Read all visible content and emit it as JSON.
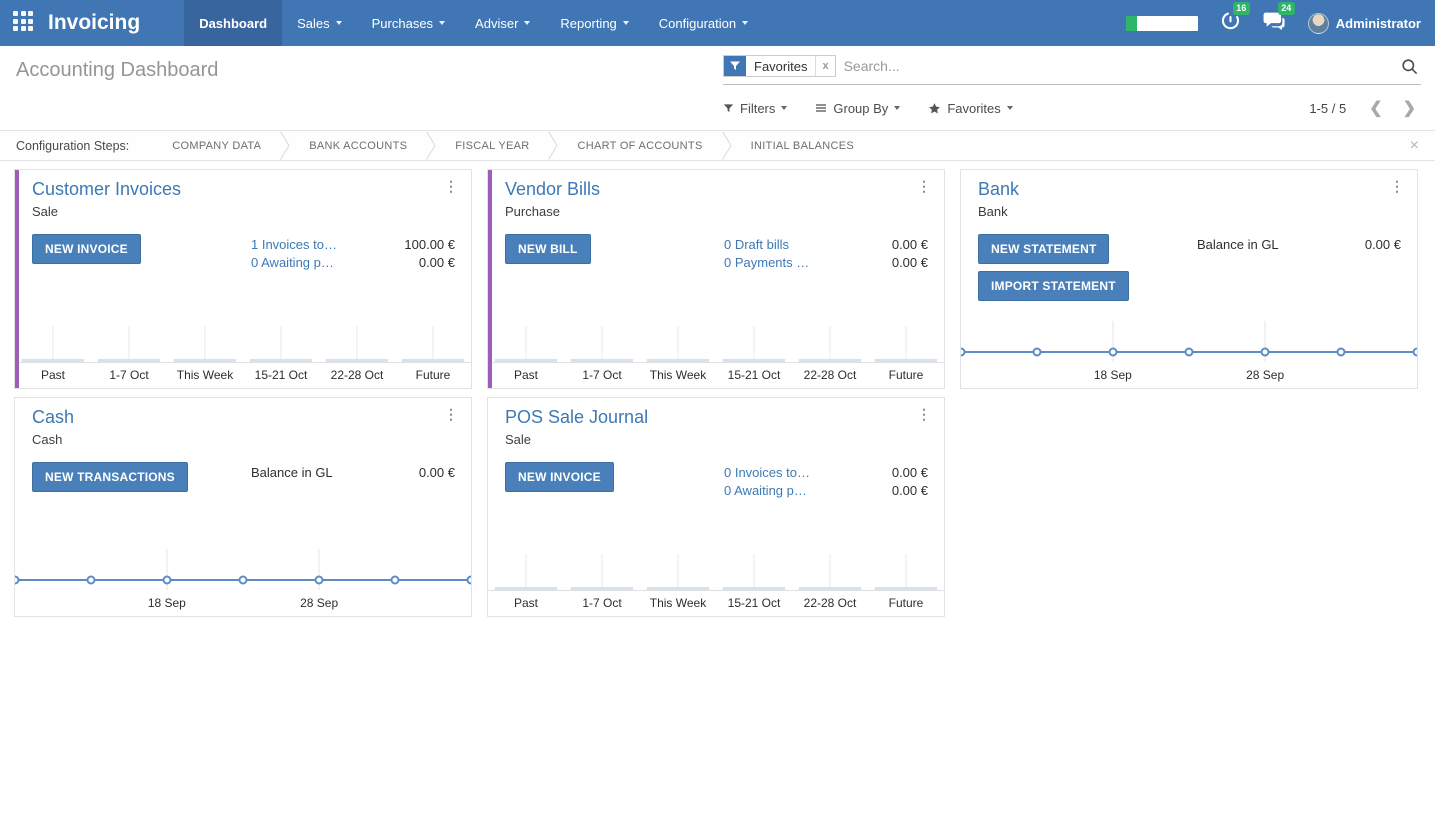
{
  "nav": {
    "app_name": "Invoicing",
    "menu": [
      {
        "label": "Dashboard",
        "active": true,
        "dropdown": false
      },
      {
        "label": "Sales",
        "active": false,
        "dropdown": true
      },
      {
        "label": "Purchases",
        "active": false,
        "dropdown": true
      },
      {
        "label": "Adviser",
        "active": false,
        "dropdown": true
      },
      {
        "label": "Reporting",
        "active": false,
        "dropdown": true
      },
      {
        "label": "Configuration",
        "active": false,
        "dropdown": true
      }
    ],
    "activity_badge": "16",
    "message_badge": "24",
    "user_name": "Administrator"
  },
  "control_panel": {
    "title": "Accounting Dashboard",
    "search_facet": "Favorites",
    "facet_remove": "x",
    "search_placeholder": "Search...",
    "filters_label": "Filters",
    "group_by_label": "Group By",
    "favorites_label": "Favorites",
    "pager": "1-5 / 5",
    "pager_prev": "❮",
    "pager_next": "❯"
  },
  "config_bar": {
    "label": "Configuration Steps:",
    "steps": [
      "COMPANY DATA",
      "BANK ACCOUNTS",
      "FISCAL YEAR",
      "CHART OF ACCOUNTS",
      "INITIAL BALANCES"
    ],
    "close": "×"
  },
  "kebab": "⋮",
  "cards": [
    {
      "title": "Customer Invoices",
      "subtitle": "Sale",
      "buttons": [
        "NEW INVOICE"
      ],
      "stats": [
        {
          "link": "1 Invoices to…",
          "amount": "100.00 €"
        },
        {
          "link": "0 Awaiting p…",
          "amount": "0.00 €"
        }
      ],
      "chart": {
        "type": "bar",
        "categories": [
          "Past",
          "1-7 Oct",
          "This Week",
          "15-21 Oct",
          "22-28 Oct",
          "Future"
        ],
        "values": [
          0,
          0,
          0,
          0,
          0,
          0
        ]
      }
    },
    {
      "title": "Vendor Bills",
      "subtitle": "Purchase",
      "buttons": [
        "NEW BILL"
      ],
      "stats": [
        {
          "link": "0 Draft bills",
          "amount": "0.00 €"
        },
        {
          "link": "0 Payments …",
          "amount": "0.00 €"
        }
      ],
      "chart": {
        "type": "bar",
        "categories": [
          "Past",
          "1-7 Oct",
          "This Week",
          "15-21 Oct",
          "22-28 Oct",
          "Future"
        ],
        "values": [
          0,
          0,
          0,
          0,
          0,
          0
        ]
      }
    },
    {
      "title": "Bank",
      "subtitle": "Bank",
      "buttons": [
        "NEW STATEMENT",
        "IMPORT STATEMENT"
      ],
      "balance": {
        "label": "Balance in GL",
        "amount": "0.00 €"
      },
      "chart": {
        "type": "line",
        "values": [
          0,
          0,
          0,
          0,
          0,
          0,
          0
        ],
        "tick_labels": [
          "18 Sep",
          "28 Sep"
        ],
        "tick_indices": [
          2,
          4
        ]
      }
    },
    {
      "title": "Cash",
      "subtitle": "Cash",
      "buttons": [
        "NEW TRANSACTIONS"
      ],
      "balance": {
        "label": "Balance in GL",
        "amount": "0.00 €"
      },
      "chart": {
        "type": "line",
        "values": [
          0,
          0,
          0,
          0,
          0,
          0,
          0
        ],
        "tick_labels": [
          "18 Sep",
          "28 Sep"
        ],
        "tick_indices": [
          2,
          4
        ]
      }
    },
    {
      "title": "POS Sale Journal",
      "subtitle": "Sale",
      "buttons": [
        "NEW INVOICE"
      ],
      "stats": [
        {
          "link": "0 Invoices to…",
          "amount": "0.00 €"
        },
        {
          "link": "0 Awaiting p…",
          "amount": "0.00 €"
        }
      ],
      "chart": {
        "type": "bar",
        "categories": [
          "Past",
          "1-7 Oct",
          "This Week",
          "15-21 Oct",
          "22-28 Oct",
          "Future"
        ],
        "values": [
          0,
          0,
          0,
          0,
          0,
          0
        ]
      }
    }
  ],
  "colors": {
    "navbar": "#4076b4",
    "navbar_active": "#38659e",
    "badge_green": "#2eb568",
    "button_blue": "#4a80ba",
    "link_blue": "#3d79b4",
    "stripe_purple": "#9b5fb5",
    "chart_line": "#5b8cc7",
    "chart_bar_fill": "#d4e2f2",
    "gridline": "#e8e8e8"
  }
}
